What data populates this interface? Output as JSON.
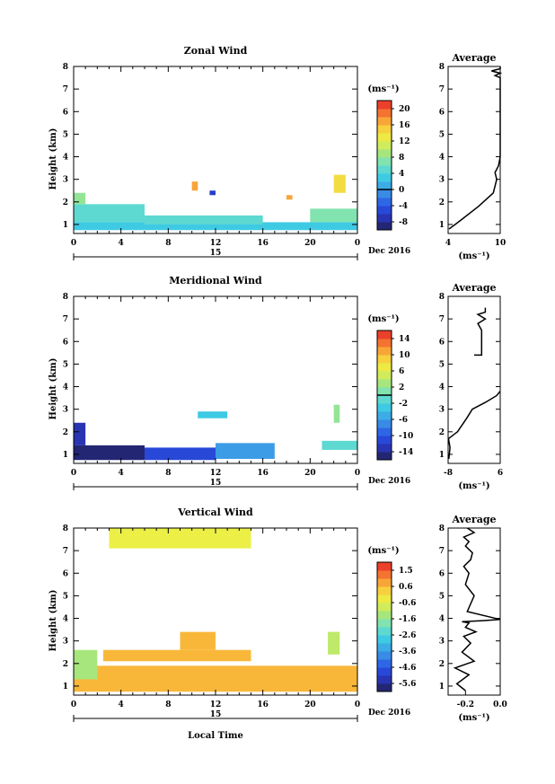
{
  "xlabel_bottom": "Local Time",
  "date_label": "Dec 2016",
  "day_label": "15",
  "chart_data": [
    {
      "type": "heatmap",
      "title": "Zonal Wind",
      "ylabel": "Height (km)",
      "xlim": [
        0,
        24
      ],
      "ylim": [
        0.6,
        8
      ],
      "x_ticks": [
        "0",
        "4",
        "8",
        "12",
        "16",
        "20",
        "0"
      ],
      "y_ticks": [
        "1",
        "2",
        "3",
        "4",
        "5",
        "6",
        "7",
        "8"
      ],
      "colorbar": {
        "unit": "(ms⁻¹)",
        "range": [
          -10,
          22
        ],
        "ticks": [
          "20",
          "16",
          "12",
          "8",
          "4",
          "0",
          "-4",
          "-8"
        ],
        "zero_line": 0
      },
      "cells": [
        {
          "x0": 0,
          "x1": 24,
          "y0": 0.75,
          "y1": 1.1,
          "v": 3
        },
        {
          "x0": 0,
          "x1": 6,
          "y0": 1.1,
          "y1": 1.9,
          "v": 5
        },
        {
          "x0": 0,
          "x1": 1,
          "y0": 1.9,
          "y1": 2.4,
          "v": 8
        },
        {
          "x0": 6,
          "x1": 16,
          "y0": 1.0,
          "y1": 1.4,
          "v": 5
        },
        {
          "x0": 20,
          "x1": 24,
          "y0": 1.1,
          "y1": 1.7,
          "v": 7
        },
        {
          "x0": 22,
          "x1": 23,
          "y0": 2.4,
          "y1": 3.2,
          "v": 14
        },
        {
          "x0": 10,
          "x1": 10.5,
          "y0": 2.5,
          "y1": 2.9,
          "v": 17
        },
        {
          "x0": 11.5,
          "x1": 12,
          "y0": 2.3,
          "y1": 2.5,
          "v": -6
        },
        {
          "x0": 18,
          "x1": 18.5,
          "y0": 2.1,
          "y1": 2.3,
          "v": 17
        }
      ],
      "profile": {
        "title": "Average",
        "xlim": [
          4,
          10
        ],
        "x_ticks": [
          "4",
          "10"
        ],
        "xlabel": "(ms⁻¹)",
        "ylim": [
          0.6,
          8
        ],
        "y_ticks": [
          "1",
          "2",
          "3",
          "4",
          "5",
          "6",
          "7",
          "8"
        ],
        "x": [
          4.1,
          5.5,
          7.5,
          9.2,
          9.6,
          9.4,
          9.8,
          10,
          10,
          10,
          10,
          10,
          10,
          10,
          10,
          10,
          9.4,
          10,
          9.0,
          10,
          10
        ],
        "y": [
          0.8,
          1.2,
          1.8,
          2.4,
          3.0,
          3.3,
          3.6,
          4.0,
          4.5,
          5.0,
          5.5,
          6.0,
          6.5,
          7.0,
          7.3,
          7.5,
          7.6,
          7.7,
          7.8,
          7.9,
          8.0
        ]
      }
    },
    {
      "type": "heatmap",
      "title": "Meridional Wind",
      "ylabel": "Height (km)",
      "xlim": [
        0,
        24
      ],
      "ylim": [
        0.6,
        8
      ],
      "x_ticks": [
        "0",
        "4",
        "8",
        "12",
        "16",
        "20",
        "0"
      ],
      "y_ticks": [
        "1",
        "2",
        "3",
        "4",
        "5",
        "6",
        "7",
        "8"
      ],
      "colorbar": {
        "unit": "(ms⁻¹)",
        "range": [
          -16,
          16
        ],
        "ticks": [
          "14",
          "10",
          "6",
          "2",
          "-2",
          "-6",
          "-10",
          "-14"
        ],
        "zero_line": 0
      },
      "cells": [
        {
          "x0": 0,
          "x1": 6,
          "y0": 0.75,
          "y1": 1.4,
          "v": -15
        },
        {
          "x0": 0,
          "x1": 1,
          "y0": 1.4,
          "y1": 2.4,
          "v": -13
        },
        {
          "x0": 6,
          "x1": 12,
          "y0": 0.75,
          "y1": 1.3,
          "v": -11
        },
        {
          "x0": 12,
          "x1": 17,
          "y0": 0.8,
          "y1": 1.5,
          "v": -6
        },
        {
          "x0": 21,
          "x1": 24,
          "y0": 1.2,
          "y1": 1.6,
          "v": -1
        },
        {
          "x0": 22,
          "x1": 22.5,
          "y0": 2.4,
          "y1": 3.2,
          "v": 2
        },
        {
          "x0": 10.5,
          "x1": 13,
          "y0": 2.6,
          "y1": 2.9,
          "v": -3
        }
      ],
      "profile": {
        "title": "Average",
        "xlim": [
          -8,
          6
        ],
        "x_ticks": [
          "-8",
          "6"
        ],
        "xlabel": "(ms⁻¹)",
        "ylim": [
          0.6,
          8
        ],
        "y_ticks": [
          "1",
          "2",
          "3",
          "4",
          "5",
          "6",
          "7",
          "8"
        ],
        "x": [
          -7.8,
          -7.5,
          -7.9,
          -5.5,
          -3.0,
          -1.5,
          2.0,
          5.0,
          6.0
        ],
        "y": [
          0.8,
          1.3,
          1.7,
          2.0,
          2.6,
          3.0,
          3.3,
          3.6,
          3.8
        ],
        "upper_x": [
          -1.0,
          1.0,
          1.0,
          0.0,
          2.0,
          0.0,
          2.0,
          2.0
        ],
        "upper_y": [
          5.4,
          5.4,
          6.5,
          6.8,
          7.0,
          7.2,
          7.3,
          7.5
        ]
      }
    },
    {
      "type": "heatmap",
      "title": "Vertical Wind",
      "ylabel": "Height (km)",
      "xlim": [
        0,
        24
      ],
      "ylim": [
        0.6,
        8
      ],
      "x_ticks": [
        "0",
        "4",
        "8",
        "12",
        "16",
        "20",
        "0"
      ],
      "y_ticks": [
        "1",
        "2",
        "3",
        "4",
        "5",
        "6",
        "7",
        "8"
      ],
      "colorbar": {
        "unit": "(ms⁻¹)",
        "range": [
          -6.2,
          2.2
        ],
        "ticks": [
          "1.5",
          "0.6",
          "-0.6",
          "-1.6",
          "-2.6",
          "-3.6",
          "-4.6",
          "-5.6"
        ],
        "zero_line": null
      },
      "cells": [
        {
          "x0": 0,
          "x1": 24,
          "y0": 0.75,
          "y1": 1.9,
          "v": 0.7
        },
        {
          "x0": 0,
          "x1": 2,
          "y0": 1.3,
          "y1": 2.6,
          "v": -1.2
        },
        {
          "x0": 2.5,
          "x1": 15,
          "y0": 2.1,
          "y1": 2.6,
          "v": 0.7
        },
        {
          "x0": 9,
          "x1": 12,
          "y0": 2.6,
          "y1": 3.4,
          "v": 0.7
        },
        {
          "x0": 21.5,
          "x1": 22.5,
          "y0": 2.4,
          "y1": 3.4,
          "v": -0.9
        },
        {
          "x0": 3,
          "x1": 15,
          "y0": 7.1,
          "y1": 8.0,
          "v": -0.3
        }
      ],
      "profile": {
        "title": "Average",
        "xlim": [
          -0.3,
          0.0
        ],
        "x_ticks": [
          "-0.2",
          "0.0"
        ],
        "xlabel": "(ms⁻¹)",
        "ylim": [
          0.6,
          8
        ],
        "y_ticks": [
          "1",
          "2",
          "3",
          "4",
          "5",
          "6",
          "7",
          "8"
        ],
        "x": [
          -0.2,
          -0.25,
          -0.18,
          -0.26,
          -0.15,
          -0.22,
          -0.17,
          -0.21,
          -0.14,
          -0.2,
          -0.18,
          -0.22,
          -0.1,
          0.0,
          -0.19,
          -0.15,
          -0.2,
          -0.18,
          -0.21,
          -0.17,
          -0.16,
          -0.2,
          -0.18,
          -0.21,
          -0.15,
          -0.19
        ],
        "y": [
          0.8,
          1.1,
          1.5,
          1.8,
          2.1,
          2.5,
          2.9,
          3.2,
          3.4,
          3.6,
          3.8,
          3.85,
          3.9,
          3.95,
          4.3,
          5.0,
          5.5,
          6.0,
          6.3,
          6.6,
          6.9,
          7.2,
          7.4,
          7.6,
          7.8,
          8.0
        ]
      }
    }
  ]
}
